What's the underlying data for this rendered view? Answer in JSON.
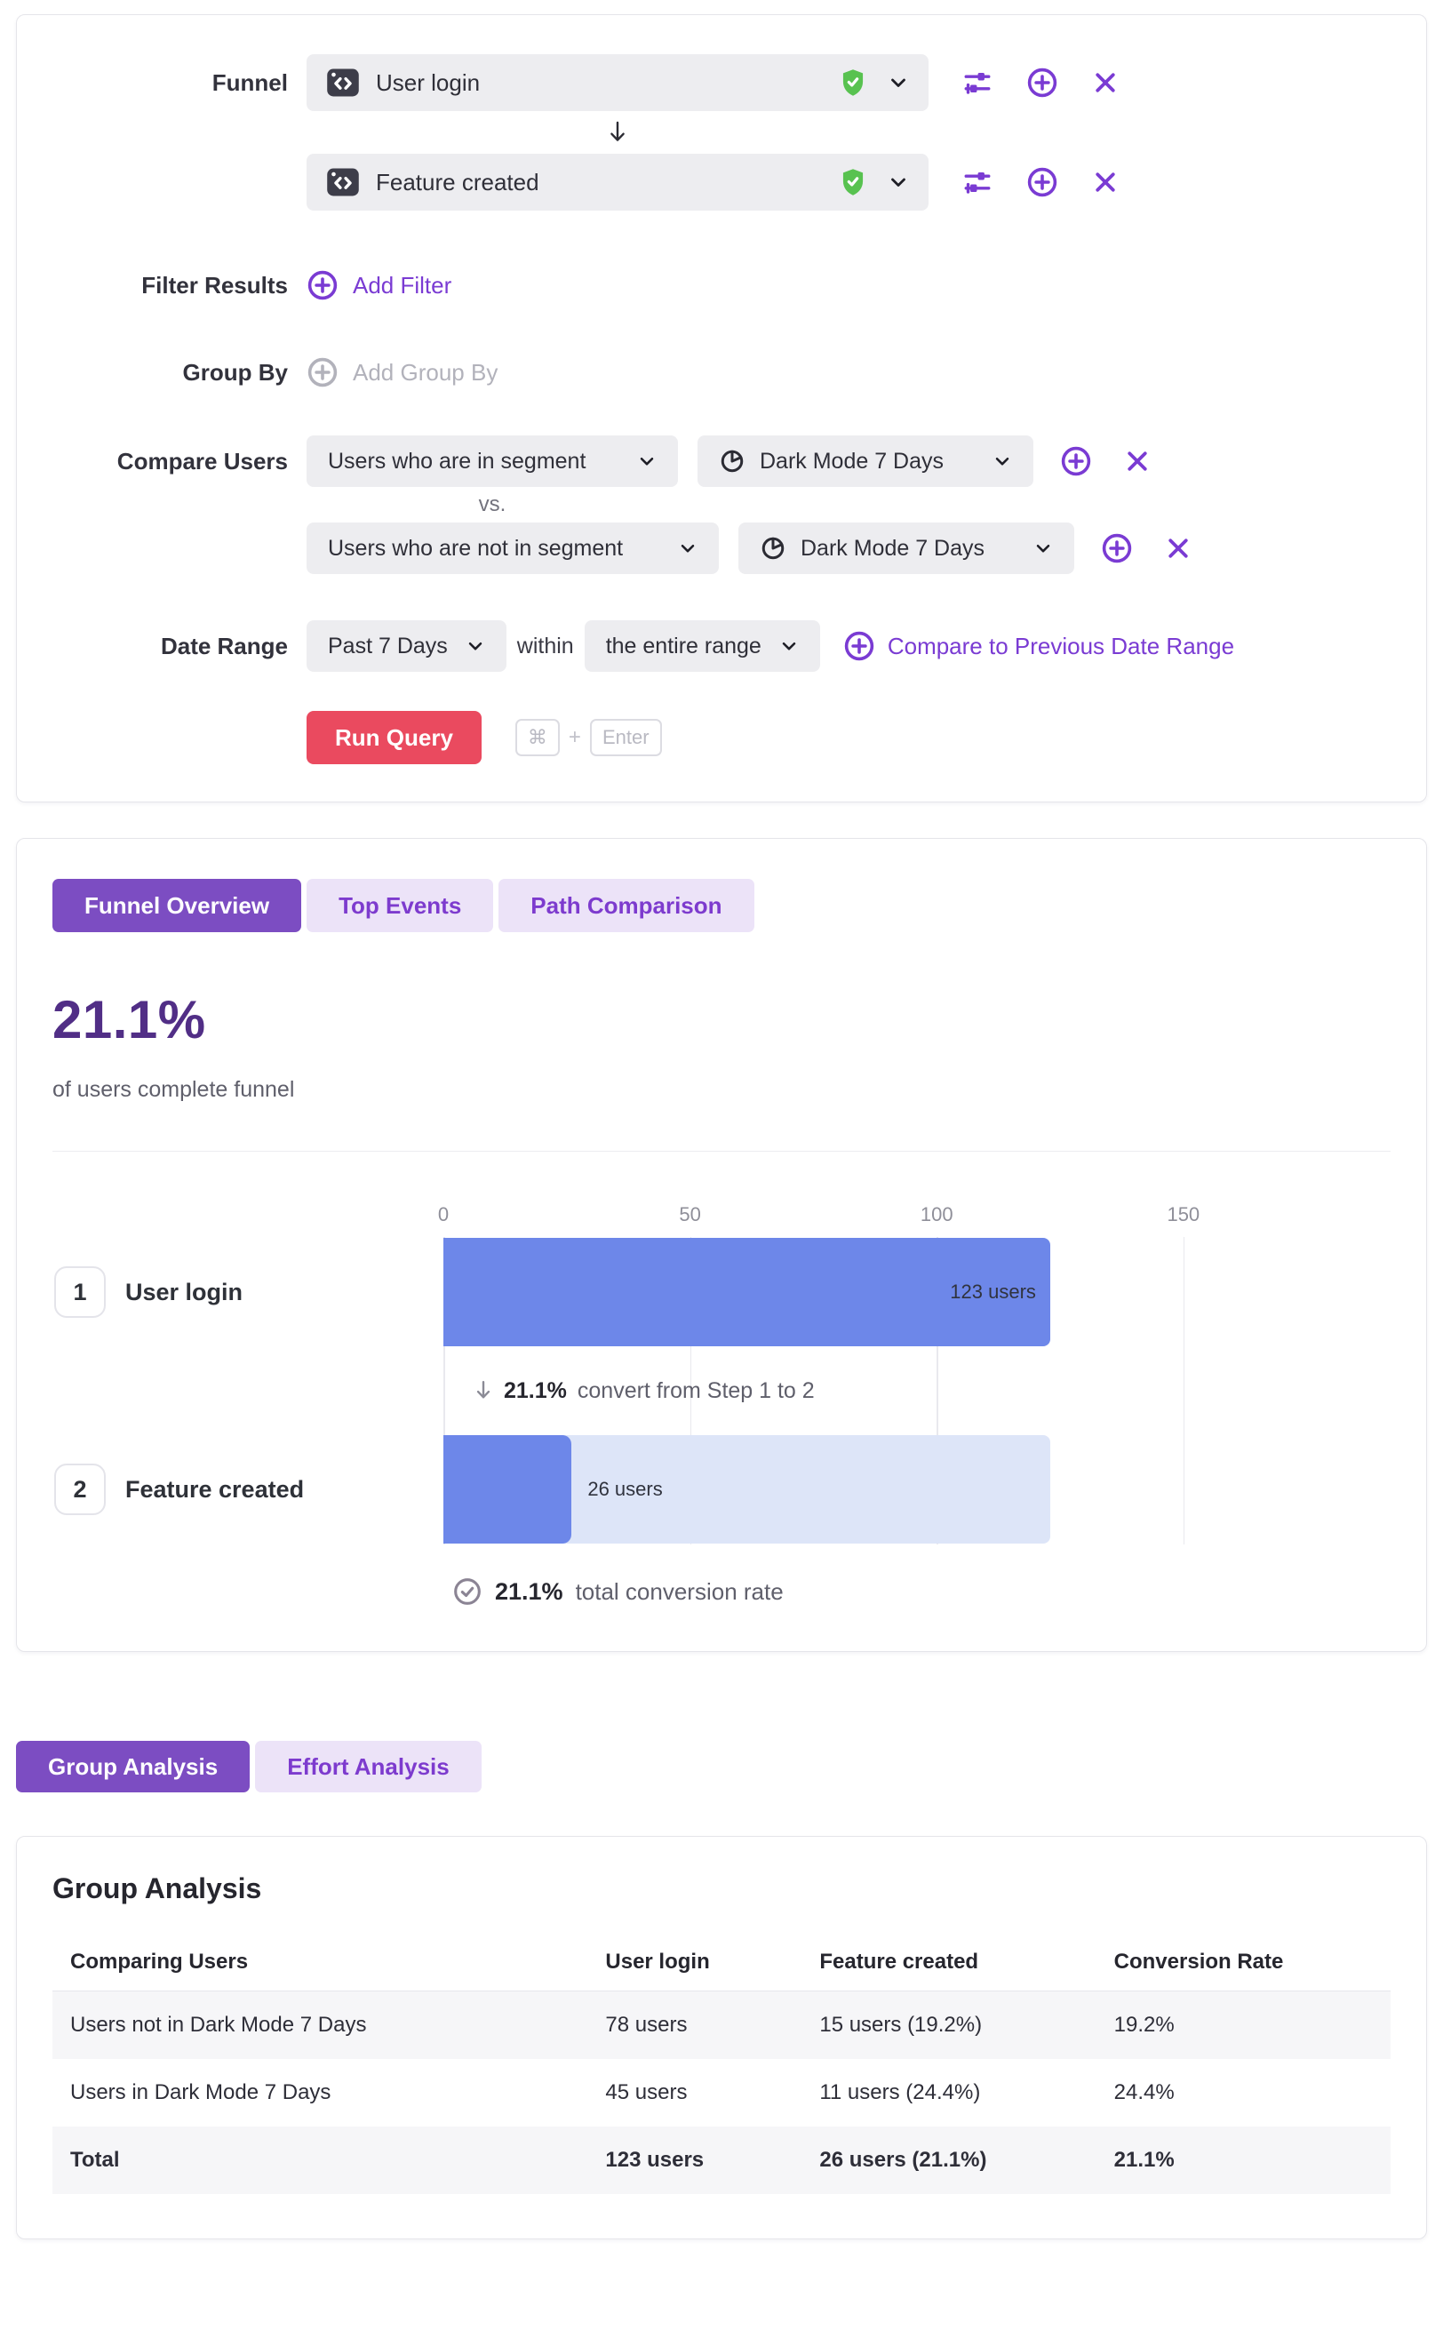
{
  "query_builder": {
    "funnel_label": "Funnel",
    "steps": [
      {
        "event": "User login"
      },
      {
        "event": "Feature created"
      }
    ],
    "filter_results": {
      "label": "Filter Results",
      "action": "Add Filter"
    },
    "group_by": {
      "label": "Group By",
      "action": "Add Group By"
    },
    "compare_users": {
      "label": "Compare Users",
      "vs_label": "vs.",
      "rows": [
        {
          "selector": "Users who are in segment",
          "segment": "Dark Mode 7 Days"
        },
        {
          "selector": "Users who are not in segment",
          "segment": "Dark Mode 7 Days"
        }
      ]
    },
    "date_range": {
      "label": "Date Range",
      "range": "Past 7 Days",
      "within_label": "within",
      "scope": "the entire range",
      "compare_link": "Compare to Previous Date Range"
    },
    "run_query": {
      "label": "Run Query",
      "key_cmd": "⌘",
      "key_join": "+",
      "key_enter": "Enter"
    }
  },
  "results": {
    "tabs": [
      {
        "label": "Funnel Overview"
      },
      {
        "label": "Top Events"
      },
      {
        "label": "Path Comparison"
      }
    ],
    "headline_value": "21.1%",
    "headline_caption": "of users complete funnel",
    "chart_data": {
      "type": "bar",
      "orientation": "horizontal",
      "categories": [
        "User login",
        "Feature created"
      ],
      "step_numbers": [
        "1",
        "2"
      ],
      "values": [
        123,
        26
      ],
      "bar_labels": [
        "123 users",
        "26 users"
      ],
      "x_ticks": [
        0,
        50,
        100,
        150
      ],
      "xlim": [
        0,
        192
      ],
      "grid": true,
      "bar_color": "#6d87e9",
      "track_color": "#dde5f8",
      "annotations": [
        "21.1% convert from Step 1 to 2",
        "21.1% total conversion rate"
      ]
    },
    "step_convert": {
      "value": "21.1%",
      "text": "convert from Step 1 to 2"
    },
    "total_convert": {
      "value": "21.1%",
      "text": "total conversion rate"
    }
  },
  "analysis": {
    "tabs": [
      {
        "label": "Group Analysis"
      },
      {
        "label": "Effort Analysis"
      }
    ],
    "title": "Group Analysis",
    "table": {
      "columns": [
        "Comparing Users",
        "User login",
        "Feature created",
        "Conversion Rate"
      ],
      "rows": [
        {
          "cells": [
            "Users not in Dark Mode 7 Days",
            "78 users",
            "15 users (19.2%)",
            "19.2%"
          ]
        },
        {
          "cells": [
            "Users in Dark Mode 7 Days",
            "45 users",
            "11 users (24.4%)",
            "24.4%"
          ]
        },
        {
          "cells": [
            "Total",
            "123 users",
            "26 users (21.1%)",
            "21.1%"
          ]
        }
      ]
    }
  },
  "colors": {
    "accent_purple": "#7a3bd3",
    "tab_active_bg": "#7c4dc2",
    "tab_inactive_bg": "#ece3f8",
    "headline_purple": "#512e86",
    "run_button_red": "#ea4a5f",
    "verified_green": "#58c250",
    "bar_blue": "#6d87e9",
    "bar_track_blue": "#dde5f8",
    "event_icon_bg": "#3d3d49"
  }
}
